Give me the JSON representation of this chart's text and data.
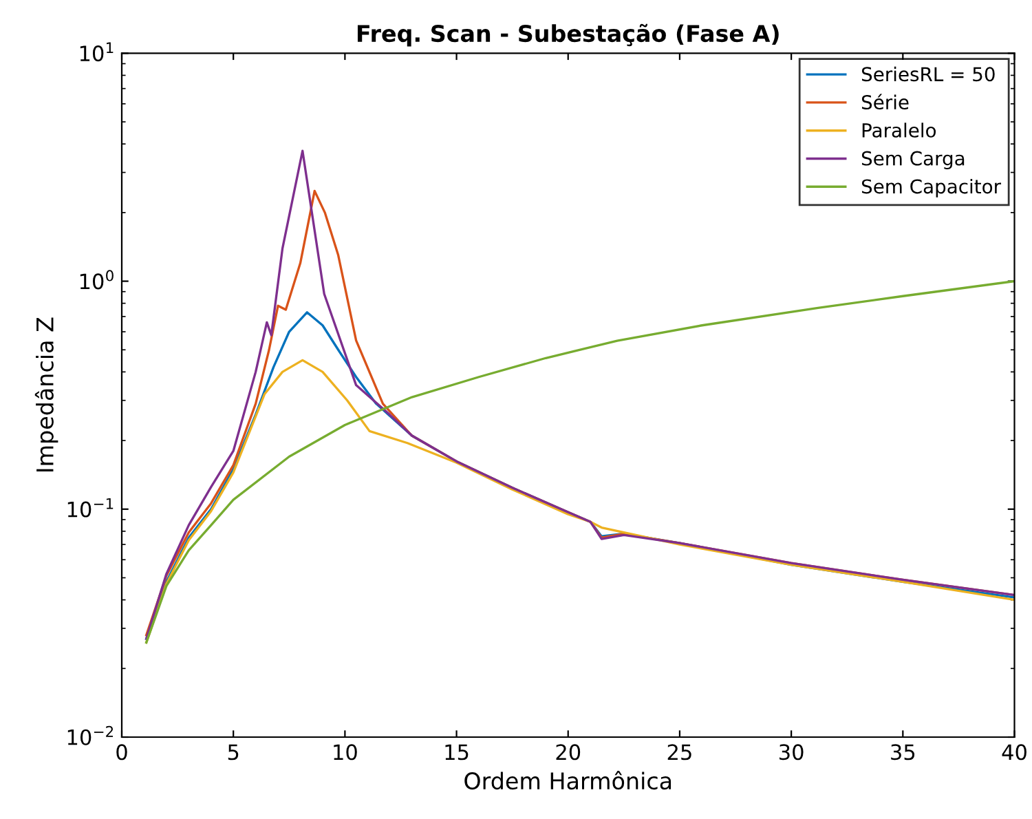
{
  "chart_data": {
    "type": "line",
    "title": "Freq. Scan - Subestação (Fase A)",
    "xlabel": "Ordem Harmônica",
    "ylabel": "Impedância Z",
    "log": "y",
    "legend": "top right",
    "grid": false,
    "xlim": [
      0,
      40
    ],
    "xticks": [
      0,
      5,
      10,
      15,
      20,
      25,
      30,
      35,
      40
    ],
    "ylim": [
      0.01,
      10
    ],
    "yticks": [
      {
        "value": 0.01,
        "label": "10$^{−2}$"
      },
      {
        "value": 0.1,
        "label": "10$^{−1}$"
      },
      {
        "value": 1,
        "label": "10$^{0}$"
      },
      {
        "value": 10,
        "label": "10$^{1}$"
      }
    ],
    "series": [
      {
        "name": "SeriesRL = 50",
        "color": "#0072bd",
        "x": [
          1.1,
          2,
          3,
          4,
          5,
          6,
          6.8,
          7.5,
          8.3,
          9,
          9.7,
          10.5,
          11.4,
          13,
          15,
          17.5,
          20,
          21,
          21.5,
          22.5,
          25,
          30,
          35,
          40
        ],
        "values": [
          0.027,
          0.048,
          0.075,
          0.1,
          0.15,
          0.26,
          0.42,
          0.6,
          0.73,
          0.64,
          0.5,
          0.38,
          0.29,
          0.21,
          0.162,
          0.124,
          0.097,
          0.088,
          0.076,
          0.078,
          0.071,
          0.057,
          0.048,
          0.041
        ]
      },
      {
        "name": "Série",
        "color": "#d95319",
        "x": [
          1.1,
          2,
          3,
          4,
          5,
          6,
          6.6,
          7,
          7.35,
          8,
          8.64,
          9.1,
          9.7,
          10.5,
          11.7,
          13,
          15,
          17.5,
          20,
          21,
          21.5,
          22.5,
          25,
          30,
          35,
          40
        ],
        "values": [
          0.028,
          0.051,
          0.079,
          0.106,
          0.156,
          0.29,
          0.5,
          0.78,
          0.75,
          1.2,
          2.49,
          2.0,
          1.3,
          0.55,
          0.29,
          0.21,
          0.162,
          0.124,
          0.097,
          0.088,
          0.075,
          0.078,
          0.071,
          0.058,
          0.049,
          0.042
        ]
      },
      {
        "name": "Paralelo",
        "color": "#edb120",
        "x": [
          1.1,
          2,
          3,
          4,
          5,
          6.4,
          7.2,
          8.1,
          9,
          10.1,
          11.1,
          12.8,
          15,
          17.5,
          20,
          21,
          21.5,
          22.5,
          25,
          30,
          35,
          40
        ],
        "values": [
          0.026,
          0.047,
          0.073,
          0.098,
          0.145,
          0.32,
          0.4,
          0.45,
          0.4,
          0.3,
          0.22,
          0.195,
          0.16,
          0.122,
          0.095,
          0.088,
          0.083,
          0.079,
          0.07,
          0.057,
          0.048,
          0.04
        ]
      },
      {
        "name": "Sem Carga",
        "color": "#7e2f8e",
        "x": [
          1.1,
          2,
          3,
          4,
          5,
          6,
          6.5,
          6.7,
          7.2,
          8.1,
          9.07,
          10.5,
          12,
          13,
          15,
          17.5,
          20,
          21,
          21.5,
          22.5,
          25,
          30,
          35,
          40
        ],
        "values": [
          0.027,
          0.052,
          0.085,
          0.125,
          0.18,
          0.4,
          0.66,
          0.58,
          1.39,
          3.73,
          0.88,
          0.35,
          0.26,
          0.21,
          0.162,
          0.124,
          0.097,
          0.088,
          0.074,
          0.077,
          0.071,
          0.058,
          0.049,
          0.042
        ]
      },
      {
        "name": "Sem Capacitor",
        "color": "#77ac30",
        "x": [
          1.1,
          2,
          3,
          4,
          5,
          7.5,
          10,
          13,
          16,
          19,
          22.2,
          26,
          31.2,
          35,
          40
        ],
        "values": [
          0.026,
          0.046,
          0.066,
          0.085,
          0.11,
          0.17,
          0.234,
          0.31,
          0.38,
          0.46,
          0.548,
          0.64,
          0.764,
          0.86,
          1.0
        ]
      }
    ]
  }
}
